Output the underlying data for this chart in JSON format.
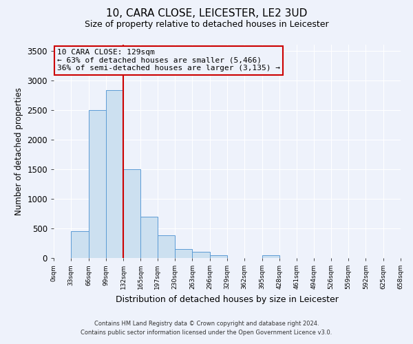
{
  "title": "10, CARA CLOSE, LEICESTER, LE2 3UD",
  "subtitle": "Size of property relative to detached houses in Leicester",
  "xlabel": "Distribution of detached houses by size in Leicester",
  "ylabel": "Number of detached properties",
  "footnote1": "Contains HM Land Registry data © Crown copyright and database right 2024.",
  "footnote2": "Contains public sector information licensed under the Open Government Licence v3.0.",
  "annotation_line1": "10 CARA CLOSE: 129sqm",
  "annotation_line2": "← 63% of detached houses are smaller (5,466)",
  "annotation_line3": "36% of semi-detached houses are larger (3,135) →",
  "bar_edges": [
    0,
    33,
    66,
    99,
    132,
    165,
    197,
    230,
    263,
    296,
    329,
    362,
    395,
    428,
    461,
    494,
    526,
    559,
    592,
    625,
    658
  ],
  "bar_heights": [
    5,
    450,
    2500,
    2830,
    1500,
    700,
    380,
    150,
    100,
    50,
    0,
    0,
    50,
    0,
    0,
    0,
    0,
    0,
    0,
    0
  ],
  "bar_color": "#cce0f0",
  "bar_edge_color": "#5b9bd5",
  "vline_color": "#cc0000",
  "vline_x": 132,
  "annotation_box_color": "#cc0000",
  "background_color": "#eef2fb",
  "ylim": [
    0,
    3600
  ],
  "yticks": [
    0,
    500,
    1000,
    1500,
    2000,
    2500,
    3000,
    3500
  ],
  "xtick_labels": [
    "0sqm",
    "33sqm",
    "66sqm",
    "99sqm",
    "132sqm",
    "165sqm",
    "197sqm",
    "230sqm",
    "263sqm",
    "296sqm",
    "329sqm",
    "362sqm",
    "395sqm",
    "428sqm",
    "461sqm",
    "494sqm",
    "526sqm",
    "559sqm",
    "592sqm",
    "625sqm",
    "658sqm"
  ],
  "title_fontsize": 11,
  "subtitle_fontsize": 9,
  "ylabel_fontsize": 8.5,
  "xlabel_fontsize": 9
}
